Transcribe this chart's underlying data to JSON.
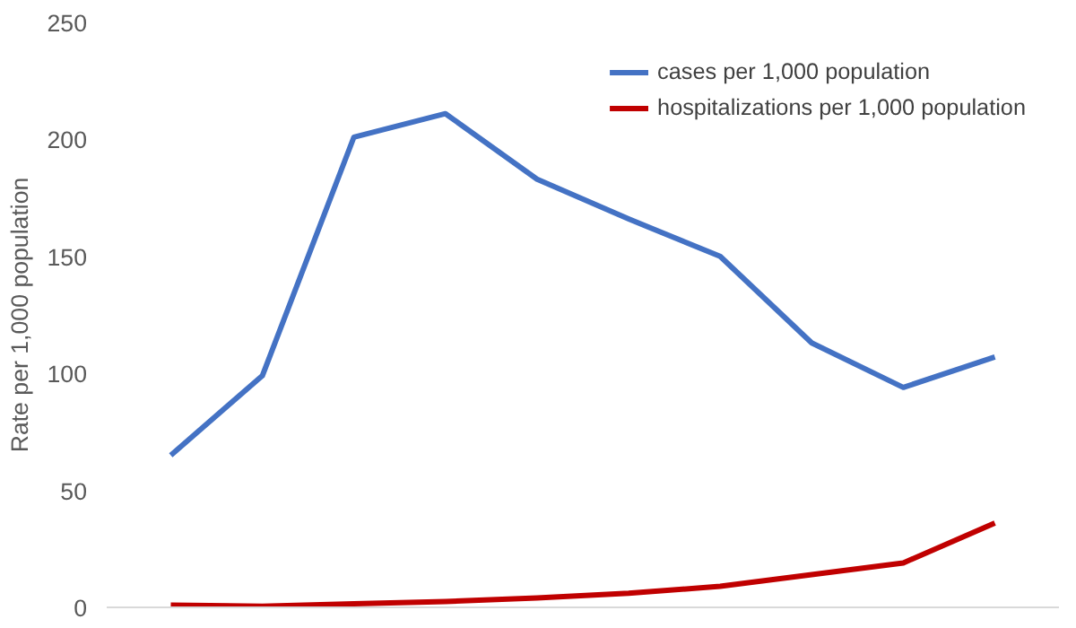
{
  "chart_data": {
    "type": "line",
    "ylabel": "Rate per 1,000 population",
    "categories": [
      null,
      null,
      null,
      null,
      null,
      null,
      null,
      null,
      null,
      null
    ],
    "series": [
      {
        "name": "cases per 1,000 population",
        "color": "#4472c4",
        "values": [
          65,
          99,
          201,
          211,
          183,
          166,
          150,
          113,
          94,
          107
        ]
      },
      {
        "name": "hospitalizations per 1,000 population",
        "color": "#c00000",
        "values": [
          1,
          0.5,
          1.5,
          2.5,
          4,
          6,
          9,
          14,
          19,
          36
        ]
      }
    ],
    "ylim": [
      0,
      250
    ],
    "yticks": [
      0,
      50,
      100,
      150,
      200,
      250
    ],
    "grid": false,
    "legend": "top right",
    "marker": "none",
    "line_style": "solid"
  }
}
